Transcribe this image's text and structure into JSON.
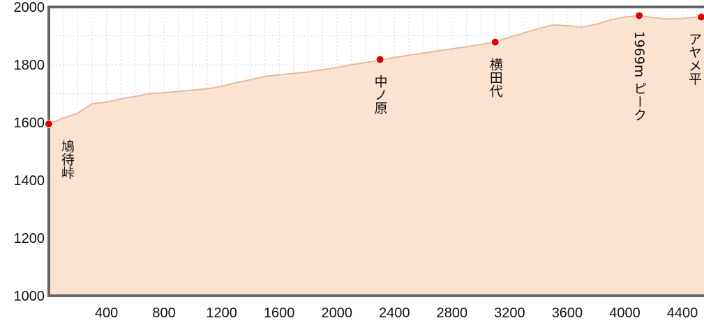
{
  "chart_data": {
    "type": "area",
    "title": "",
    "xlabel": "",
    "ylabel": "",
    "xlim": [
      0,
      4550
    ],
    "ylim": [
      1000,
      2000
    ],
    "x_ticks": [
      "400",
      "800",
      "1200",
      "1600",
      "2000",
      "2400",
      "2800",
      "3200",
      "3600",
      "4000",
      "4400"
    ],
    "y_ticks": [
      "1000",
      "1200",
      "1400",
      "1600",
      "1800",
      "2000"
    ],
    "grid": true,
    "colors": {
      "fill": "#fbe0cc",
      "line": "#e9b898",
      "marker": "#e00000",
      "frame": "#666666"
    },
    "series": [
      {
        "x": [
          0,
          100,
          200,
          300,
          400,
          500,
          600,
          700,
          800,
          900,
          1000,
          1100,
          1200,
          1300,
          1400,
          1500,
          1600,
          1700,
          1800,
          1900,
          2000,
          2100,
          2200,
          2300,
          2400,
          2500,
          2600,
          2700,
          2800,
          2900,
          3000,
          3100,
          3200,
          3300,
          3400,
          3500,
          3600,
          3700,
          3800,
          3900,
          4000,
          4100,
          4200,
          4300,
          4400,
          4500,
          4550
        ],
        "y": [
          1595,
          1615,
          1632,
          1665,
          1670,
          1682,
          1690,
          1700,
          1703,
          1708,
          1712,
          1717,
          1725,
          1738,
          1748,
          1760,
          1765,
          1770,
          1775,
          1783,
          1790,
          1800,
          1808,
          1815,
          1825,
          1833,
          1840,
          1848,
          1855,
          1862,
          1870,
          1880,
          1895,
          1910,
          1925,
          1938,
          1935,
          1930,
          1940,
          1955,
          1965,
          1970,
          1963,
          1958,
          1960,
          1965,
          1968
        ]
      }
    ],
    "waypoints": [
      {
        "x": 0,
        "y": 1595,
        "label": "鳩待峠"
      },
      {
        "x": 2300,
        "y": 1818,
        "label": "中ノ原"
      },
      {
        "x": 3100,
        "y": 1878,
        "label": "横田代"
      },
      {
        "x": 4100,
        "y": 1970,
        "label": "1969m ピーク"
      },
      {
        "x": 4550,
        "y": 1965,
        "label": "アヤメ平"
      }
    ]
  }
}
